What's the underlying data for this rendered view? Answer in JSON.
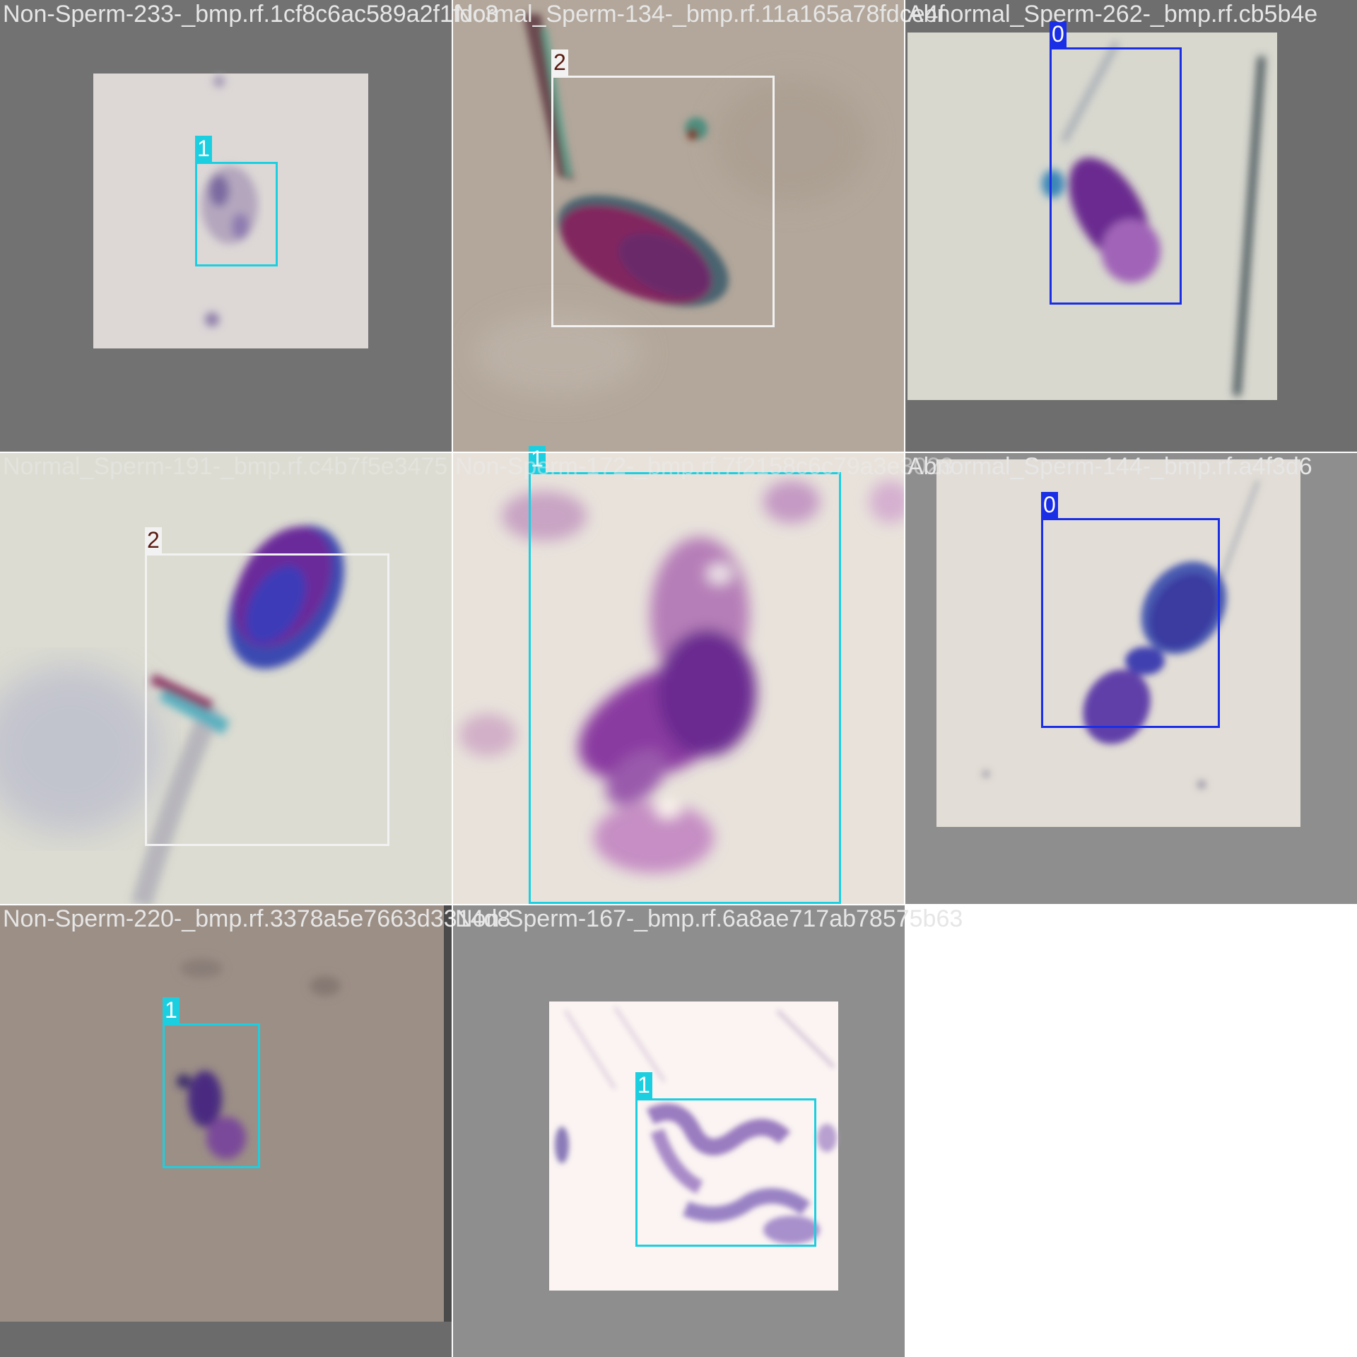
{
  "class_colors": {
    "0": "#1a2ee6",
    "1": "#1ccfe0",
    "2": "#f2f2f2"
  },
  "tiles": [
    {
      "title": "Non-Sperm-233-_bmp.rf.1cf8c6ac589a2f1fdc3",
      "boxes": [
        {
          "label": "1"
        }
      ]
    },
    {
      "title": "Normal_Sperm-134-_bmp.rf.11a165a78fdce4f",
      "boxes": [
        {
          "label": "2"
        }
      ]
    },
    {
      "title": "Abnormal_Sperm-262-_bmp.rf.cb5b4e",
      "boxes": [
        {
          "label": "0"
        }
      ]
    },
    {
      "title": "Normal_Sperm-191-_bmp.rf.c4b7f5e3475",
      "boxes": [
        {
          "label": "2"
        }
      ]
    },
    {
      "title": "Non-Sperm-172-_bmp.rf.7f2158c6c79a3e3023",
      "boxes": [
        {
          "label": "1"
        }
      ]
    },
    {
      "title": "Abnormal_Sperm-144-_bmp.rf.a4f3d6",
      "boxes": [
        {
          "label": "0"
        }
      ]
    },
    {
      "title": "Non-Sperm-220-_bmp.rf.3378a5e7663d3314d8",
      "boxes": [
        {
          "label": "1"
        }
      ]
    },
    {
      "title": "Non-Sperm-167-_bmp.rf.6a8ae717ab78575b63",
      "boxes": [
        {
          "label": "1"
        }
      ]
    }
  ]
}
